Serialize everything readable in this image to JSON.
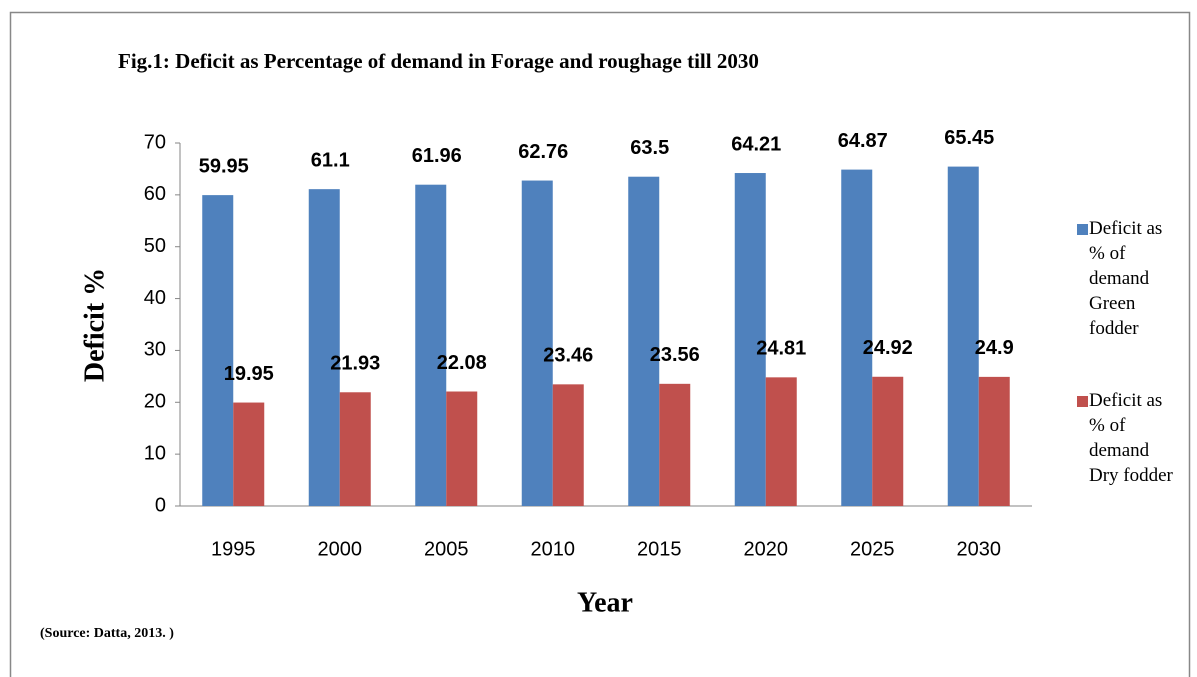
{
  "chart_data": {
    "type": "bar",
    "title": "Fig.1:  Deficit as Percentage  of demand  in Forage and roughage till 2030",
    "x_label": "Year",
    "y_label": "Deficit %",
    "source": "(Source: Datta, 2013. )",
    "categories": [
      "1995",
      "2000",
      "2005",
      "2010",
      "2015",
      "2020",
      "2025",
      "2030"
    ],
    "series": [
      {
        "name": "Deficit as % of demand Green fodder",
        "color": "#4f81bd",
        "values": [
          59.95,
          61.1,
          61.96,
          62.76,
          63.5,
          64.21,
          64.87,
          65.45
        ]
      },
      {
        "name": "Deficit as % of demand Dry fodder",
        "color": "#c0504d",
        "values": [
          19.95,
          21.93,
          22.08,
          23.46,
          23.56,
          24.81,
          24.92,
          24.9
        ]
      }
    ],
    "ylim": [
      0,
      70
    ],
    "yticks": [
      0,
      10,
      20,
      30,
      40,
      50,
      60,
      70
    ],
    "grid": false,
    "legend": "right"
  }
}
